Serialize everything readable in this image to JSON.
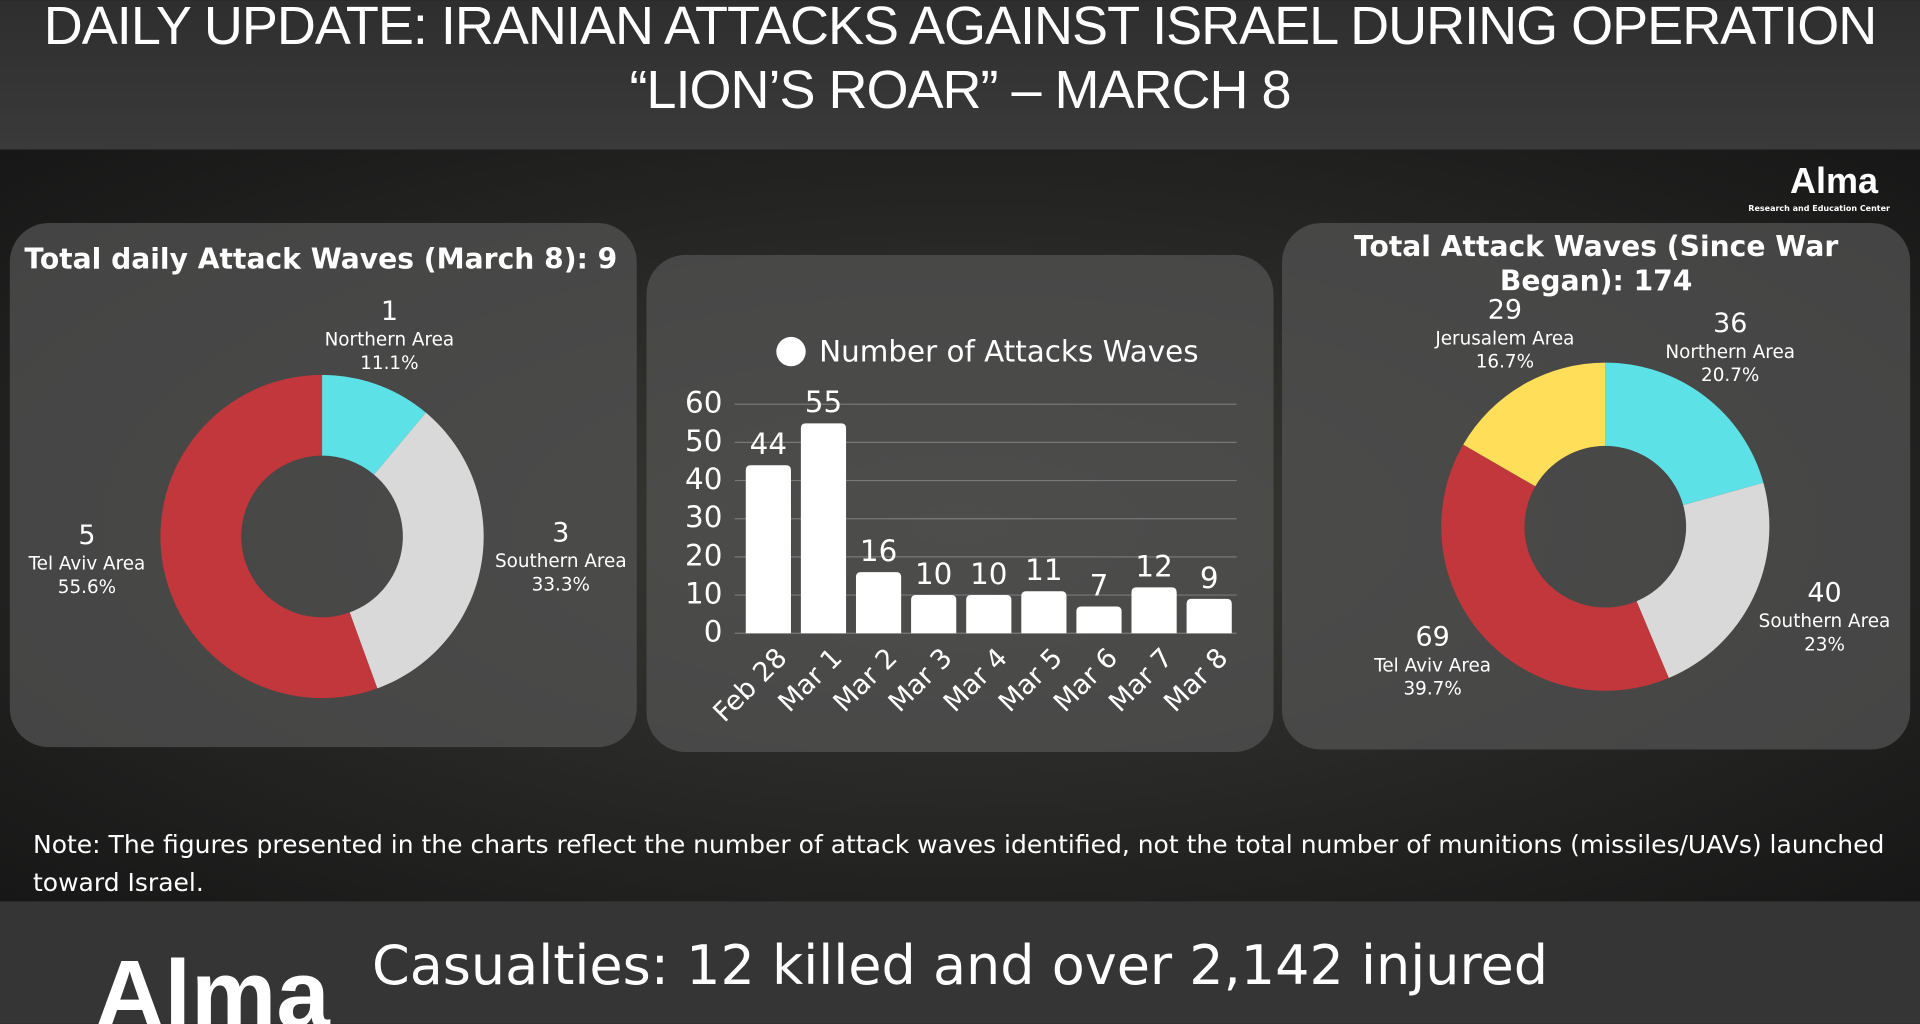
{
  "header": {
    "title": "DAILY UPDATE: IRANIAN ATTACKS AGAINST ISRAEL DURING OPERATION “LION’S ROAR” – MARCH 8"
  },
  "logo": {
    "name": "Alma",
    "tagline": "Research and Education Center"
  },
  "chart_data": [
    {
      "type": "pie",
      "title": "Total daily Attack Waves (March 8): 9",
      "categories": [
        "Northern Area",
        "Southern Area",
        "Tel Aviv Area"
      ],
      "values": [
        1,
        3,
        5
      ],
      "percent_labels": [
        "11.1%",
        "33.3%",
        "55.6%"
      ],
      "colors": [
        "#5ce1e6",
        "#d9d9d9",
        "#c1373b"
      ]
    },
    {
      "type": "bar",
      "legend": "Number of Attacks Waves",
      "color": "#ffffff",
      "categories": [
        "Feb 28",
        "Mar 1",
        "Mar 2",
        "Mar 3",
        "Mar 4",
        "Mar 5",
        "Mar 6",
        "Mar 7",
        "Mar 8"
      ],
      "values": [
        44,
        55,
        16,
        10,
        10,
        11,
        7,
        12,
        9
      ],
      "ylim": [
        0,
        60
      ],
      "yticks": [
        0,
        10,
        20,
        30,
        40,
        50,
        60
      ],
      "grid": true
    },
    {
      "type": "pie",
      "title": "Total Attack Waves (Since War Began): 174",
      "categories": [
        "Northern Area",
        "Southern Area",
        "Tel Aviv Area",
        "Jerusalem Area"
      ],
      "values": [
        36,
        40,
        69,
        29
      ],
      "percent_labels": [
        "20.7%",
        "23%",
        "39.7%",
        "16.7%"
      ],
      "colors": [
        "#5ce1e6",
        "#d9d9d9",
        "#c1373b",
        "#ffde59"
      ]
    }
  ],
  "note": "Note: The figures presented in the charts reflect the number of attack waves identified, not the total number of munitions (missiles/UAVs) launched toward Israel.",
  "footer": {
    "casualties": "Casualties: 12 killed and over 2,142 injured"
  }
}
